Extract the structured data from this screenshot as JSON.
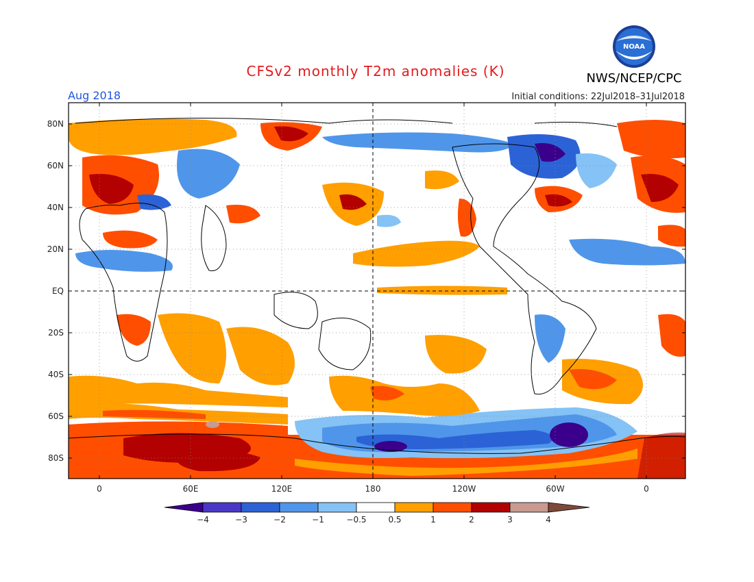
{
  "header": {
    "title": "CFSv2 monthly T2m anomalies (K)",
    "month": "Aug 2018",
    "initial_conditions": "Initial conditions: 22Jul2018–31Jul2018",
    "agency": "NWS/NCEP/CPC",
    "logo_text": "NOAA"
  },
  "axes": {
    "lat_labels": [
      "80N",
      "60N",
      "40N",
      "20N",
      "EQ",
      "20S",
      "40S",
      "60S",
      "80S"
    ],
    "lon_labels": [
      "0",
      "60E",
      "120E",
      "180",
      "120W",
      "60W",
      "0"
    ]
  },
  "colorbar": {
    "tick_labels": [
      "−4",
      "−3",
      "−2",
      "−1",
      "−0.5",
      "0.5",
      "1",
      "2",
      "3",
      "4"
    ],
    "colors": {
      "below_min": "#3a008c",
      "neg4_neg3": "#4a37c8",
      "neg3_neg2": "#2b63d6",
      "neg2_neg1": "#4f96ea",
      "neg1_neg05": "#85c2f5",
      "neutral": "#ffffff",
      "p05_1": "#ff9f00",
      "p1_2": "#ff4e00",
      "p2_3": "#b30000",
      "p3_4": "#c99a90",
      "above_max": "#7d4a3a"
    }
  }
}
